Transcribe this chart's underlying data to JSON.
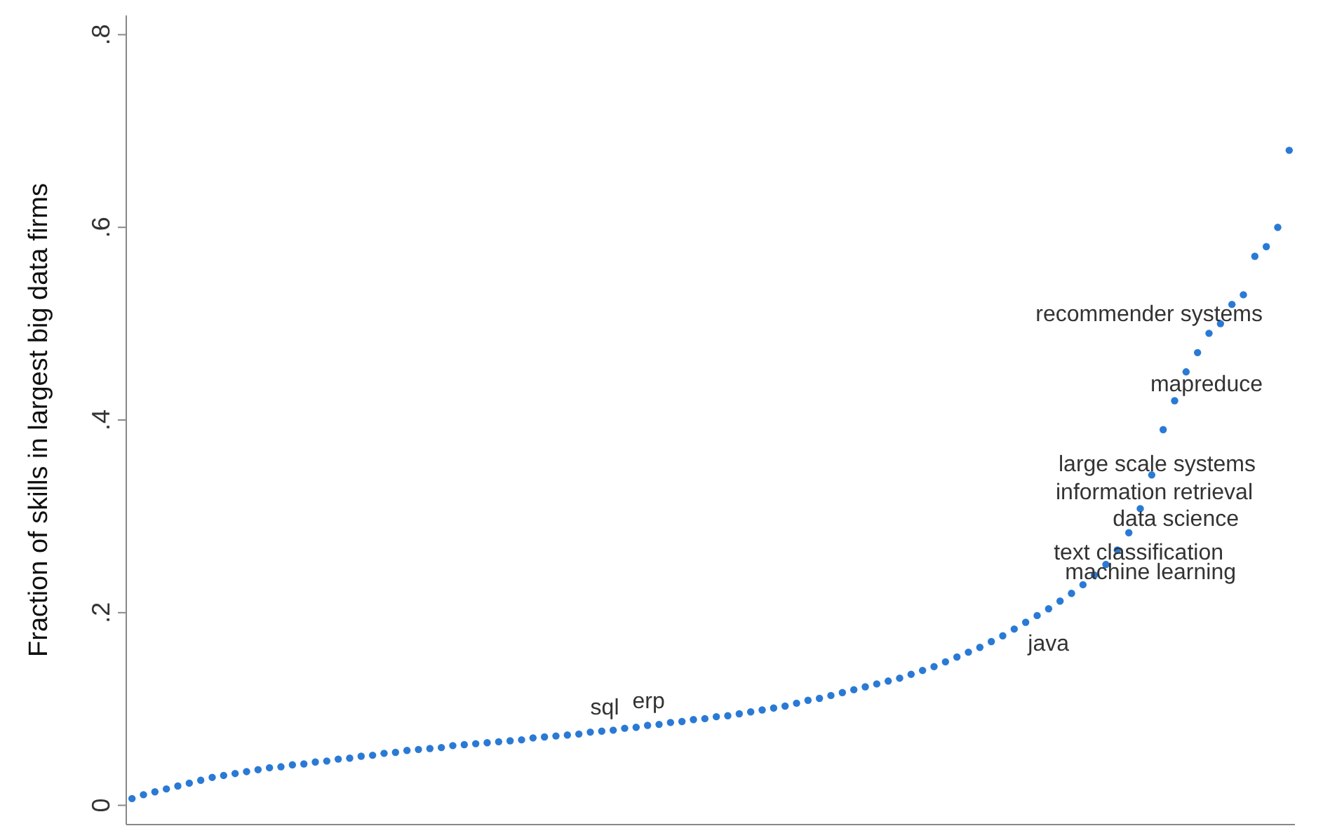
{
  "chart_data": {
    "type": "scatter",
    "ylabel": "Fraction of skills in largest big data firms",
    "marker": "circle",
    "tick_labels": "y",
    "legend": false,
    "grid": false,
    "categories": [
      null,
      null,
      null,
      null,
      null,
      null,
      null,
      null,
      null,
      null,
      null,
      null,
      null,
      null,
      null,
      null,
      null,
      null,
      null,
      null,
      null,
      null,
      null,
      null,
      null,
      null,
      null,
      null,
      null,
      null,
      null,
      null,
      null,
      null,
      null,
      null,
      null,
      null,
      null,
      null,
      null,
      null,
      null,
      null,
      null,
      null,
      null,
      null,
      null,
      null,
      null,
      null,
      null,
      null,
      null,
      null,
      null,
      null,
      null,
      null,
      null,
      null,
      null,
      null,
      null,
      null,
      null,
      null,
      null,
      null,
      null,
      null,
      null,
      null,
      null,
      null,
      null,
      null,
      null,
      null,
      null,
      null,
      null,
      null,
      null,
      null,
      null,
      null,
      null,
      null,
      null,
      null,
      null,
      null,
      null,
      null,
      null,
      null,
      null,
      null,
      null,
      null
    ],
    "series": [
      {
        "color": "#2a7ad5",
        "values": [
          0.007,
          0.011,
          0.014,
          0.017,
          0.02,
          0.023,
          0.026,
          0.029,
          0.031,
          0.033,
          0.035,
          0.037,
          0.039,
          0.04,
          0.042,
          0.043,
          0.045,
          0.046,
          0.048,
          0.049,
          0.051,
          0.052,
          0.054,
          0.055,
          0.057,
          0.058,
          0.059,
          0.06,
          0.062,
          0.063,
          0.064,
          0.065,
          0.066,
          0.067,
          0.068,
          0.07,
          0.071,
          0.072,
          0.073,
          0.074,
          0.076,
          0.077,
          0.078,
          0.08,
          0.081,
          0.083,
          0.084,
          0.086,
          0.087,
          0.089,
          0.09,
          0.092,
          0.093,
          0.095,
          0.097,
          0.099,
          0.101,
          0.103,
          0.106,
          0.109,
          0.111,
          0.114,
          0.117,
          0.12,
          0.123,
          0.126,
          0.129,
          0.132,
          0.136,
          0.14,
          0.144,
          0.149,
          0.154,
          0.159,
          0.164,
          0.17,
          0.176,
          0.183,
          0.19,
          0.197,
          0.204,
          0.212,
          0.22,
          0.229,
          0.239,
          0.25,
          0.265,
          0.283,
          0.308,
          0.343,
          0.39,
          0.42,
          0.45,
          0.47,
          0.49,
          0.5,
          0.52,
          0.53,
          0.57,
          0.58,
          0.6,
          0.68
        ]
      }
    ],
    "ylim": [
      -0.02,
      0.82
    ],
    "yticks": [
      {
        "value": 0,
        "label": "0"
      },
      {
        "value": 0.2,
        "label": ".2"
      },
      {
        "value": 0.4,
        "label": ".4"
      },
      {
        "value": 0.6,
        "label": ".6"
      },
      {
        "value": 0.8,
        "label": ".8"
      }
    ],
    "annotations": [
      "recommender systems",
      "mapreduce",
      "large scale systems",
      "information retrieval",
      "data science",
      "text classification",
      "machine learning",
      "java",
      {
        "text": "erp",
        "y": 0.086
      },
      {
        "text": "sql",
        "y": 0.08
      }
    ]
  }
}
